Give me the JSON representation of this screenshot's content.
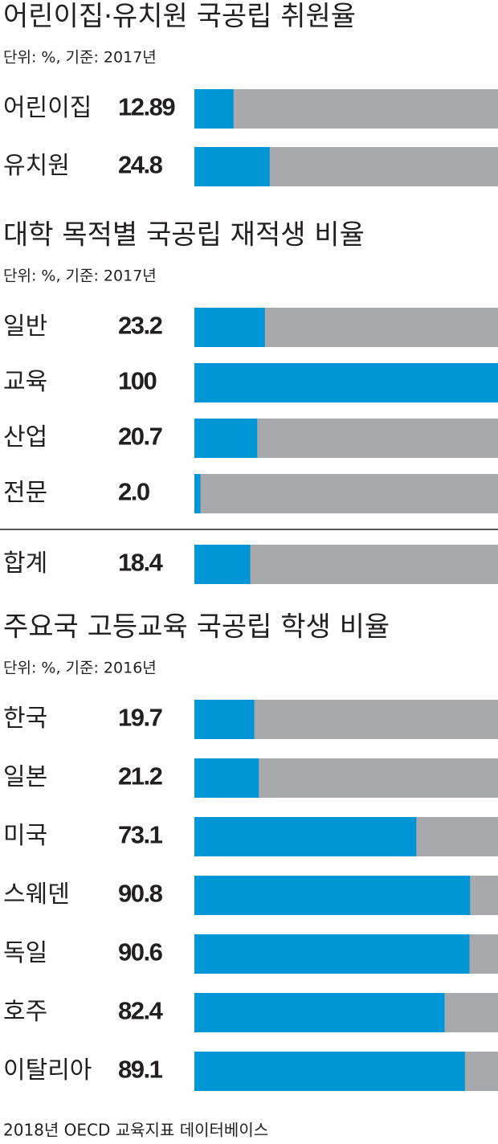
{
  "chart_data": [
    {
      "type": "bar",
      "title": "어린이집·유치원 국공립 취원율",
      "subtitle": "단위: %, 기준: 2017년",
      "categories": [
        "어린이집",
        "유치원"
      ],
      "values": [
        12.89,
        24.8
      ],
      "xlim": [
        0,
        100
      ],
      "color": "#0096d6",
      "track_color": "#a7a9ac"
    },
    {
      "type": "bar",
      "title": "대학 목적별 국공립 재적생 비율",
      "subtitle": "단위: %, 기준: 2017년",
      "categories": [
        "일반",
        "교육",
        "산업",
        "전문",
        "합계"
      ],
      "values": [
        23.2,
        100,
        20.7,
        2.0,
        18.4
      ],
      "value_labels": [
        "23.2",
        "100",
        "20.7",
        "2.0",
        "18.4"
      ],
      "xlim": [
        0,
        100
      ],
      "color": "#0096d6",
      "track_color": "#a7a9ac"
    },
    {
      "type": "bar",
      "title": "주요국 고등교육 국공립 학생 비율",
      "subtitle": "단위: %, 기준: 2016년",
      "categories": [
        "한국",
        "일본",
        "미국",
        "스웨덴",
        "독일",
        "호주",
        "이탈리아"
      ],
      "values": [
        19.7,
        21.2,
        73.1,
        90.8,
        90.6,
        82.4,
        89.1
      ],
      "xlim": [
        0,
        100
      ],
      "color": "#0096d6",
      "track_color": "#a7a9ac"
    }
  ],
  "source": "2018년 OECD 교육지표 데이터베이스"
}
